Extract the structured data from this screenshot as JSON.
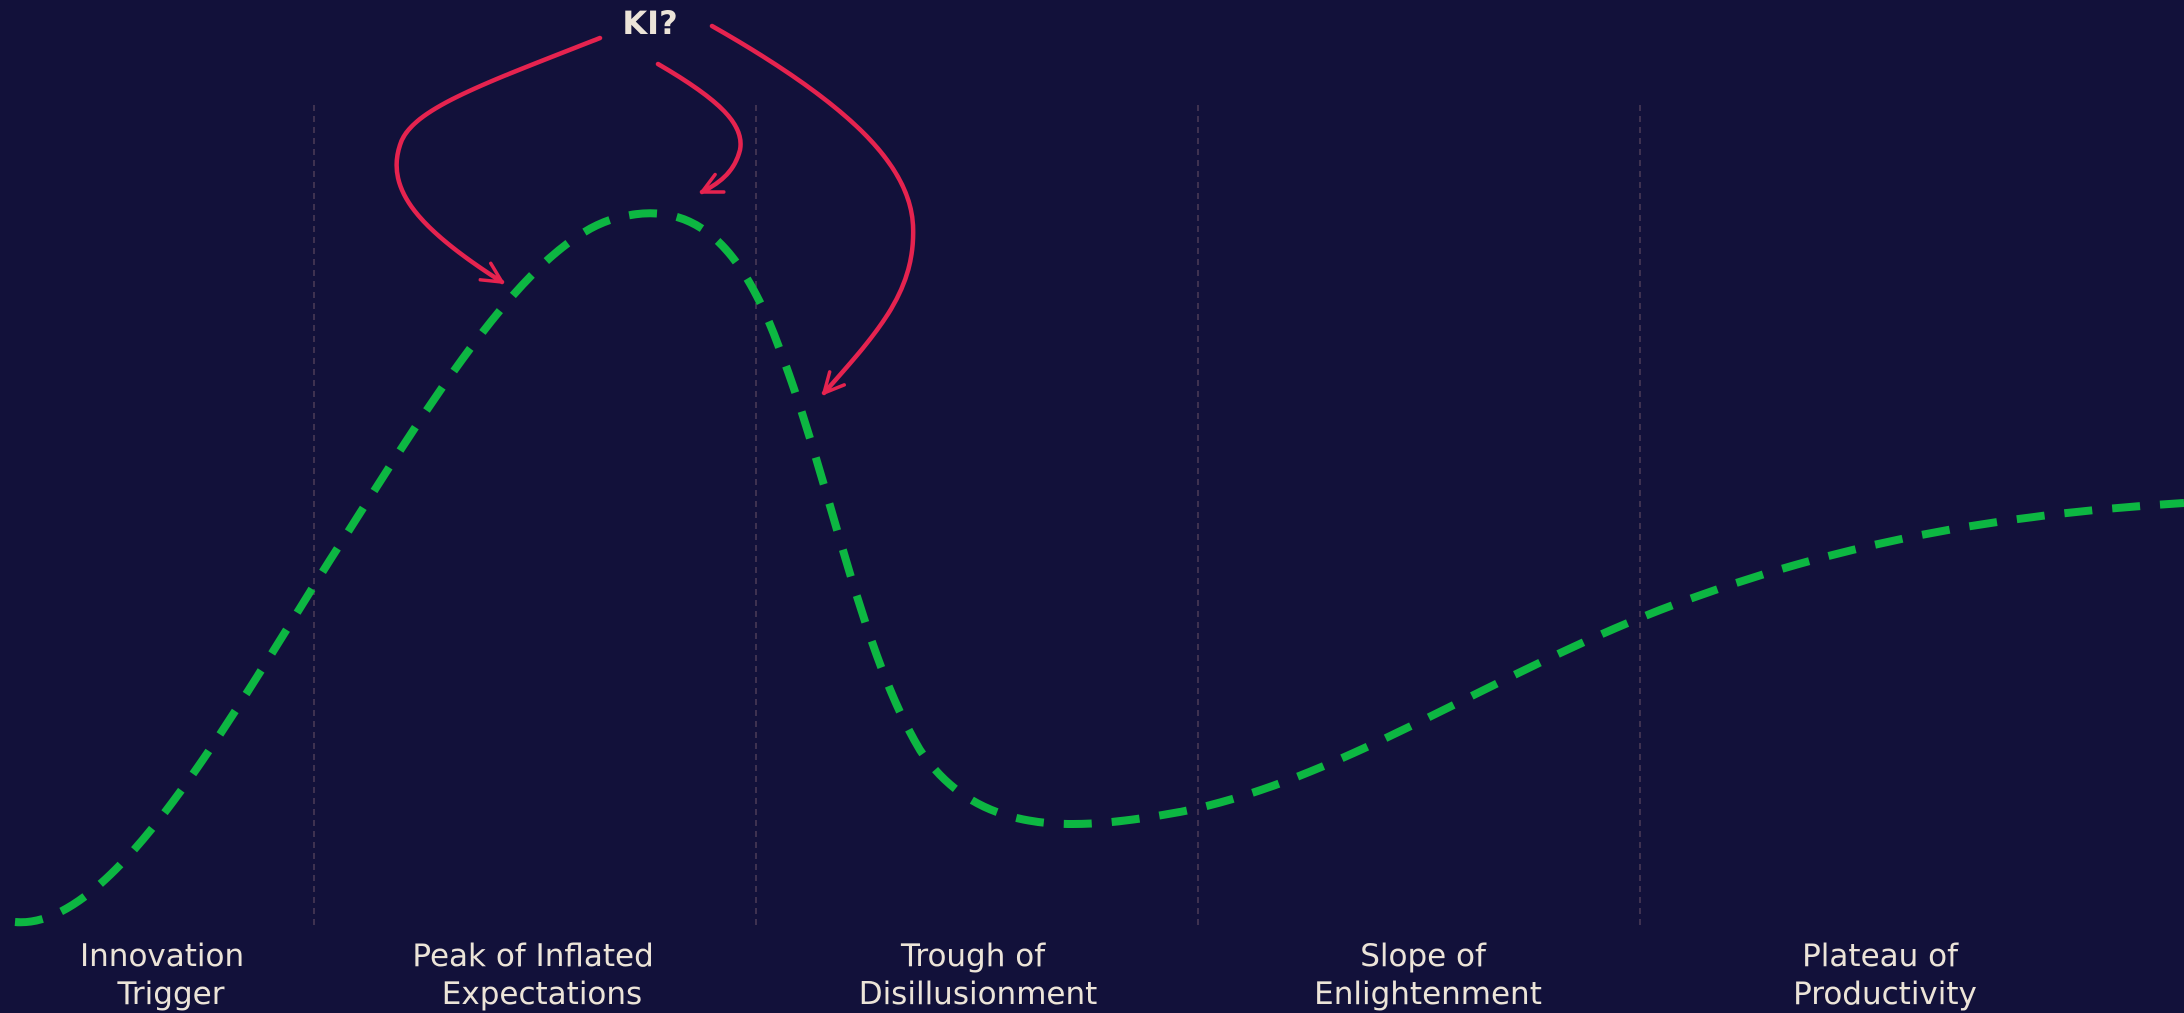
{
  "annotation": {
    "label": "KI?",
    "color": "#e5234f"
  },
  "curve": {
    "color": "#0db742",
    "style": "dashed"
  },
  "divider_color": "#4a3a55",
  "background": "#12113a",
  "text_color": "#ece4d8",
  "phases": [
    {
      "line1": "Innovation",
      "line2": "Trigger"
    },
    {
      "line1": "Peak of Inflated",
      "line2": "Expectations"
    },
    {
      "line1": "Trough of",
      "line2": "Disillusionment"
    },
    {
      "line1": "Slope of",
      "line2": "Enlightenment"
    },
    {
      "line1": "Plateau of",
      "line2": "Productivity"
    }
  ]
}
